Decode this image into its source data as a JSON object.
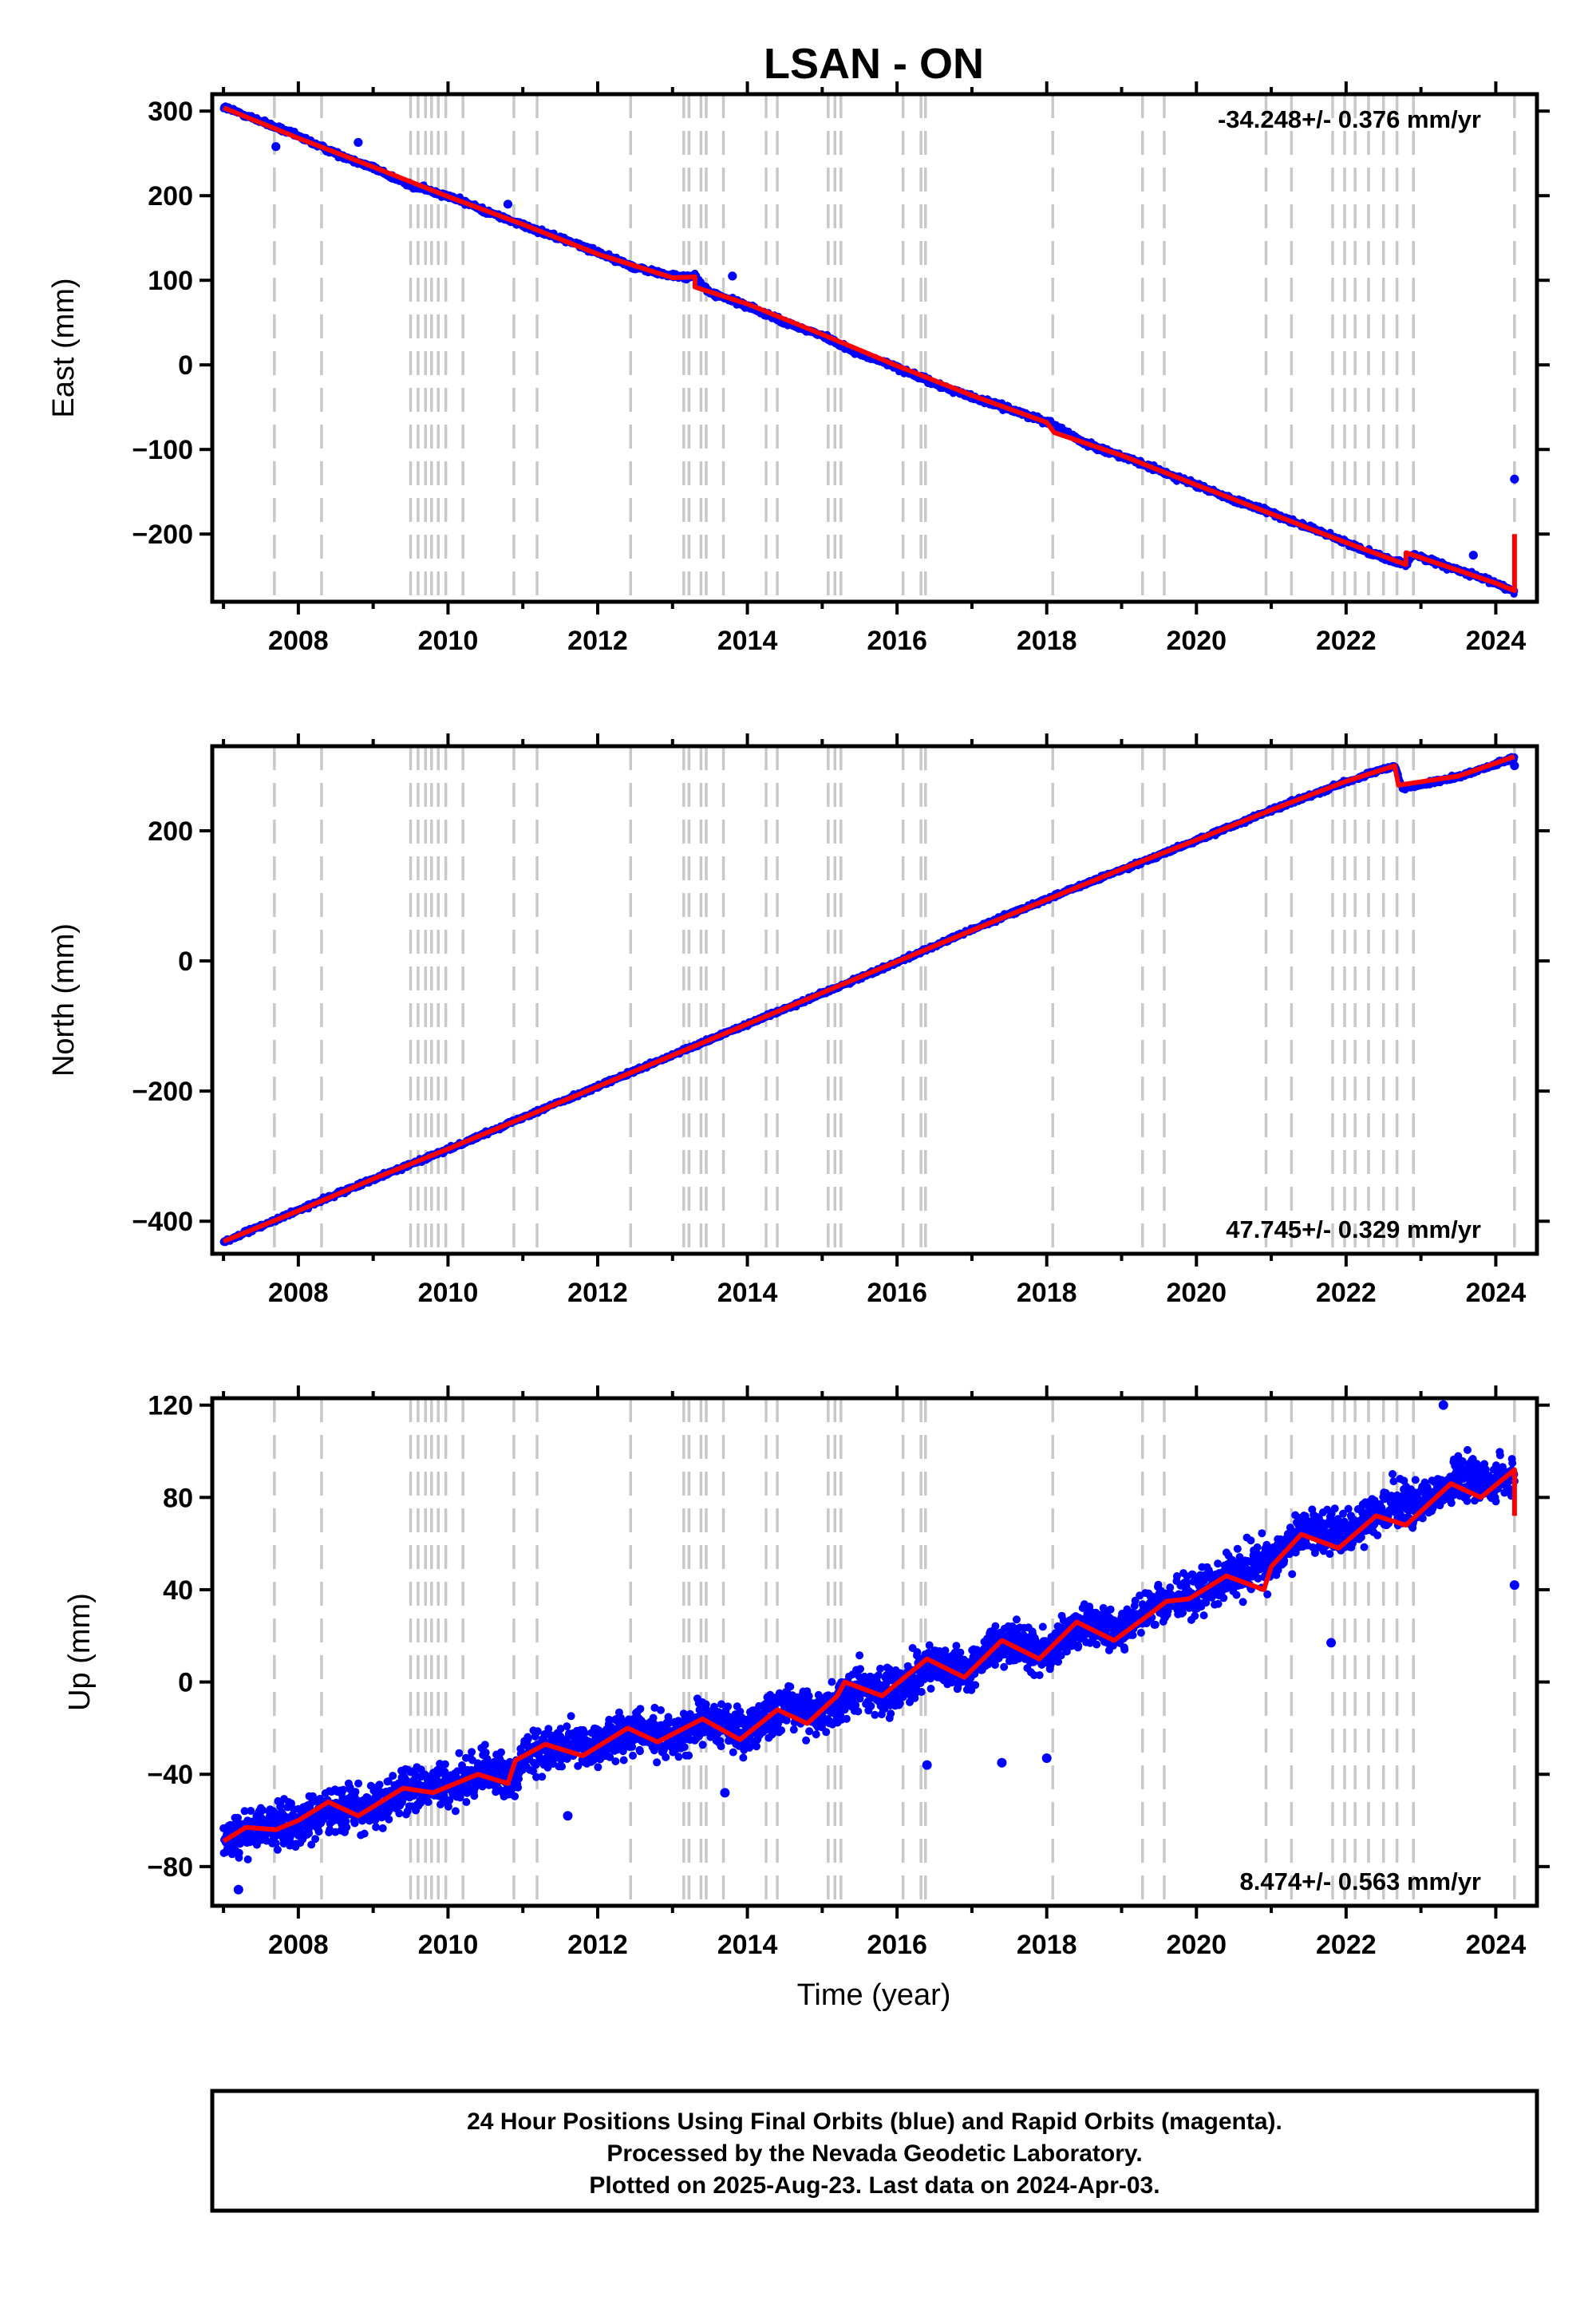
{
  "title": "LSAN - ON",
  "colors": {
    "final_orbits": "#0000ff",
    "model": "#ff0000",
    "event_lines": "#c8c8c8",
    "frame": "#000000"
  },
  "chart_data": [
    {
      "type": "scatter",
      "panel": "east",
      "ylabel": "East (mm)",
      "xlim": [
        2006.85,
        2024.55
      ],
      "ylim": [
        -280,
        320
      ],
      "yticks": [
        300,
        200,
        100,
        0,
        -100,
        -200
      ],
      "ytick_labels": [
        "300",
        "200",
        "100",
        "0",
        "−100",
        "−200"
      ],
      "xticks": [
        2008,
        2010,
        2012,
        2014,
        2016,
        2018,
        2020,
        2022,
        2024
      ],
      "xtick_labels": [
        "2008",
        "2010",
        "2012",
        "2014",
        "2016",
        "2018",
        "2020",
        "2022",
        "2024"
      ],
      "rate_label": "-34.248+/- 0.376 mm/yr",
      "rate_position": "top-right",
      "grid": false,
      "series": [
        {
          "values": [
            [
              2007.0,
              305
            ],
            [
              2007.5,
              288
            ],
            [
              2008.0,
              270
            ],
            [
              2008.5,
              250
            ],
            [
              2009.0,
              233
            ],
            [
              2009.5,
              212
            ],
            [
              2010.0,
              200
            ],
            [
              2010.5,
              182
            ],
            [
              2011.0,
              165
            ],
            [
              2011.5,
              150
            ],
            [
              2012.0,
              133
            ],
            [
              2012.5,
              115
            ],
            [
              2013.0,
              105
            ],
            [
              2013.3,
              104
            ],
            [
              2013.5,
              85
            ],
            [
              2014.0,
              70
            ],
            [
              2014.5,
              50
            ],
            [
              2015.0,
              35
            ],
            [
              2015.5,
              13
            ],
            [
              2016.0,
              -3
            ],
            [
              2016.5,
              -22
            ],
            [
              2017.0,
              -38
            ],
            [
              2017.5,
              -52
            ],
            [
              2018.0,
              -67
            ],
            [
              2018.5,
              -92
            ],
            [
              2019.0,
              -108
            ],
            [
              2019.5,
              -125
            ],
            [
              2020.0,
              -142
            ],
            [
              2020.5,
              -160
            ],
            [
              2021.0,
              -175
            ],
            [
              2021.5,
              -192
            ],
            [
              2022.0,
              -210
            ],
            [
              2022.5,
              -228
            ],
            [
              2022.8,
              -236
            ],
            [
              2022.9,
              -224
            ],
            [
              2023.5,
              -243
            ],
            [
              2024.0,
              -258
            ],
            [
              2024.25,
              -268
            ]
          ]
        },
        {
          "values": [
            [
              2007.0,
              304
            ],
            [
              2008.0,
              268
            ],
            [
              2009.0,
              234
            ],
            [
              2010.0,
              199
            ],
            [
              2011.0,
              166
            ],
            [
              2012.0,
              131
            ],
            [
              2013.0,
              103
            ],
            [
              2013.3,
              104
            ],
            [
              2013.3,
              92
            ],
            [
              2014.0,
              72
            ],
            [
              2015.0,
              36
            ],
            [
              2016.0,
              -1
            ],
            [
              2017.0,
              -36
            ],
            [
              2018.0,
              -68
            ],
            [
              2018.1,
              -80
            ],
            [
              2019.0,
              -107
            ],
            [
              2020.0,
              -142
            ],
            [
              2021.0,
              -176
            ],
            [
              2022.0,
              -210
            ],
            [
              2022.8,
              -236
            ],
            [
              2022.8,
              -222
            ],
            [
              2024.0,
              -258
            ],
            [
              2024.25,
              -267
            ],
            [
              2024.25,
              -200
            ]
          ]
        }
      ],
      "outliers": [
        [
          2007.7,
          258
        ],
        [
          2008.8,
          263
        ],
        [
          2010.8,
          190
        ],
        [
          2013.8,
          105
        ],
        [
          2023.7,
          -225
        ],
        [
          2024.25,
          -135
        ]
      ]
    },
    {
      "type": "scatter",
      "panel": "north",
      "ylabel": "North (mm)",
      "xlim": [
        2006.85,
        2024.55
      ],
      "ylim": [
        -450,
        330
      ],
      "yticks": [
        200,
        0,
        -200,
        -400
      ],
      "ytick_labels": [
        "200",
        "0",
        "−200",
        "−400"
      ],
      "xticks": [
        2008,
        2010,
        2012,
        2014,
        2016,
        2018,
        2020,
        2022,
        2024
      ],
      "xtick_labels": [
        "2008",
        "2010",
        "2012",
        "2014",
        "2016",
        "2018",
        "2020",
        "2022",
        "2024"
      ],
      "rate_label": "47.745+/- 0.329 mm/yr",
      "rate_position": "bottom-right",
      "grid": false,
      "series": [
        {
          "values": [
            [
              2007.0,
              -432
            ],
            [
              2008.0,
              -383
            ],
            [
              2009.0,
              -335
            ],
            [
              2010.0,
              -290
            ],
            [
              2011.0,
              -240
            ],
            [
              2012.0,
              -193
            ],
            [
              2013.0,
              -145
            ],
            [
              2014.0,
              -97
            ],
            [
              2015.0,
              -50
            ],
            [
              2016.0,
              -2
            ],
            [
              2017.0,
              48
            ],
            [
              2018.0,
              95
            ],
            [
              2019.0,
              140
            ],
            [
              2020.0,
              185
            ],
            [
              2021.0,
              232
            ],
            [
              2022.0,
              275
            ],
            [
              2022.65,
              300
            ],
            [
              2022.75,
              265
            ],
            [
              2023.5,
              283
            ],
            [
              2024.25,
              312
            ]
          ]
        },
        {
          "values": [
            [
              2007.0,
              -431
            ],
            [
              2008.0,
              -384
            ],
            [
              2009.0,
              -335
            ],
            [
              2010.0,
              -289
            ],
            [
              2011.0,
              -241
            ],
            [
              2012.0,
              -193
            ],
            [
              2013.0,
              -145
            ],
            [
              2014.0,
              -97
            ],
            [
              2015.0,
              -49
            ],
            [
              2016.0,
              -1
            ],
            [
              2017.0,
              47
            ],
            [
              2018.0,
              94
            ],
            [
              2019.0,
              141
            ],
            [
              2020.0,
              186
            ],
            [
              2021.0,
              232
            ],
            [
              2022.0,
              276
            ],
            [
              2022.65,
              300
            ],
            [
              2022.7,
              270
            ],
            [
              2023.5,
              284
            ],
            [
              2024.25,
              314
            ]
          ]
        }
      ],
      "outliers": [
        [
          2024.25,
          300
        ]
      ]
    },
    {
      "type": "scatter",
      "panel": "up",
      "ylabel": "Up (mm)",
      "xlabel": "Time (year)",
      "xlim": [
        2006.85,
        2024.55
      ],
      "ylim": [
        -97,
        123
      ],
      "yticks": [
        120,
        80,
        40,
        0,
        -40,
        -80
      ],
      "ytick_labels": [
        "120",
        "80",
        "40",
        "0",
        "−40",
        "−80"
      ],
      "xticks": [
        2008,
        2010,
        2012,
        2014,
        2016,
        2018,
        2020,
        2022,
        2024
      ],
      "xtick_labels": [
        "2008",
        "2010",
        "2012",
        "2014",
        "2016",
        "2018",
        "2020",
        "2022",
        "2024"
      ],
      "rate_label": "8.474+/- 0.563 mm/yr",
      "rate_position": "bottom-right",
      "grid": false,
      "series": [
        {
          "values": [
            [
              2007.0,
              -68
            ],
            [
              2007.5,
              -62
            ],
            [
              2008.0,
              -62
            ],
            [
              2008.5,
              -54
            ],
            [
              2009.0,
              -55
            ],
            [
              2009.5,
              -46
            ],
            [
              2010.0,
              -46
            ],
            [
              2010.5,
              -38
            ],
            [
              2010.9,
              -42
            ],
            [
              2011.0,
              -32
            ],
            [
              2011.5,
              -28
            ],
            [
              2012.0,
              -28
            ],
            [
              2012.5,
              -20
            ],
            [
              2013.0,
              -24
            ],
            [
              2013.5,
              -16
            ],
            [
              2014.0,
              -22
            ],
            [
              2014.5,
              -10
            ],
            [
              2015.0,
              -14
            ],
            [
              2015.5,
              -2
            ],
            [
              2016.0,
              -4
            ],
            [
              2016.5,
              8
            ],
            [
              2017.0,
              6
            ],
            [
              2017.5,
              18
            ],
            [
              2018.0,
              12
            ],
            [
              2018.5,
              25
            ],
            [
              2019.0,
              22
            ],
            [
              2019.5,
              34
            ],
            [
              2020.0,
              38
            ],
            [
              2020.5,
              48
            ],
            [
              2021.0,
              52
            ],
            [
              2021.5,
              66
            ],
            [
              2022.0,
              64
            ],
            [
              2022.5,
              76
            ],
            [
              2023.0,
              78
            ],
            [
              2023.5,
              88
            ],
            [
              2024.0,
              86
            ],
            [
              2024.25,
              90
            ]
          ]
        },
        {
          "values": [
            [
              2007.0,
              -69
            ],
            [
              2007.3,
              -63
            ],
            [
              2007.7,
              -64
            ],
            [
              2008.0,
              -60
            ],
            [
              2008.4,
              -52
            ],
            [
              2008.8,
              -58
            ],
            [
              2009.4,
              -46
            ],
            [
              2009.8,
              -48
            ],
            [
              2010.4,
              -40
            ],
            [
              2010.8,
              -44
            ],
            [
              2010.9,
              -34
            ],
            [
              2011.3,
              -27
            ],
            [
              2011.8,
              -32
            ],
            [
              2012.4,
              -20
            ],
            [
              2012.8,
              -26
            ],
            [
              2013.4,
              -16
            ],
            [
              2013.9,
              -25
            ],
            [
              2014.4,
              -12
            ],
            [
              2014.8,
              -18
            ],
            [
              2015.2,
              -6
            ],
            [
              2015.3,
              0
            ],
            [
              2015.8,
              -6
            ],
            [
              2016.4,
              10
            ],
            [
              2016.9,
              2
            ],
            [
              2017.4,
              18
            ],
            [
              2017.9,
              10
            ],
            [
              2018.4,
              26
            ],
            [
              2018.9,
              18
            ],
            [
              2019.4,
              30
            ],
            [
              2019.6,
              35
            ],
            [
              2019.9,
              36
            ],
            [
              2020.4,
              46
            ],
            [
              2020.9,
              40
            ],
            [
              2021.0,
              50
            ],
            [
              2021.4,
              64
            ],
            [
              2021.9,
              58
            ],
            [
              2022.4,
              72
            ],
            [
              2022.8,
              68
            ],
            [
              2023.4,
              86
            ],
            [
              2023.8,
              80
            ],
            [
              2024.25,
              92
            ],
            [
              2024.25,
              72
            ]
          ]
        }
      ],
      "outliers": [
        [
          2007.2,
          -90
        ],
        [
          2011.6,
          -58
        ],
        [
          2013.7,
          -48
        ],
        [
          2016.4,
          -36
        ],
        [
          2017.4,
          -35
        ],
        [
          2018.0,
          -33
        ],
        [
          2021.8,
          17
        ],
        [
          2023.3,
          120
        ],
        [
          2024.25,
          42
        ]
      ]
    }
  ],
  "event_lines": [
    2007.68,
    2008.31,
    2009.5,
    2009.6,
    2009.7,
    2009.78,
    2009.87,
    2009.97,
    2010.2,
    2010.88,
    2011.19,
    2012.44,
    2013.15,
    2013.22,
    2013.38,
    2013.45,
    2013.68,
    2014.25,
    2014.4,
    2015.08,
    2015.17,
    2015.25,
    2016.08,
    2016.32,
    2016.38,
    2018.08,
    2019.28,
    2019.57,
    2020.93,
    2021.27,
    2021.82,
    2021.98,
    2022.12,
    2022.3,
    2022.5,
    2022.68,
    2022.9,
    2024.25
  ],
  "footer": {
    "line1": "24 Hour Positions Using Final Orbits (blue) and Rapid Orbits (magenta).",
    "line2": "Processed by the Nevada Geodetic Laboratory.",
    "line3": "Plotted on 2025-Aug-23. Last data on 2024-Apr-03."
  }
}
